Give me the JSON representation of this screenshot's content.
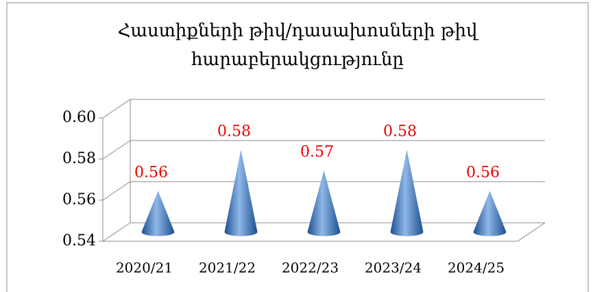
{
  "chart_data": {
    "type": "cone",
    "title": [
      "Հաստիքների թիվ/դասախոսների թիվ",
      "հարաբերակցությունը"
    ],
    "categories": [
      "2020/21",
      "2021/22",
      "2022/23",
      "2023/24",
      "2024/25"
    ],
    "values": [
      0.56,
      0.58,
      0.57,
      0.58,
      0.56
    ],
    "color": "#3f78b8",
    "ylim": [
      0.54,
      0.6
    ],
    "yticks": [
      {
        "value": 0.54,
        "label": "0.54"
      },
      {
        "value": 0.56,
        "label": "0.56"
      },
      {
        "value": 0.58,
        "label": "0.58"
      },
      {
        "value": 0.6,
        "label": "0.60"
      }
    ],
    "grid": true
  }
}
